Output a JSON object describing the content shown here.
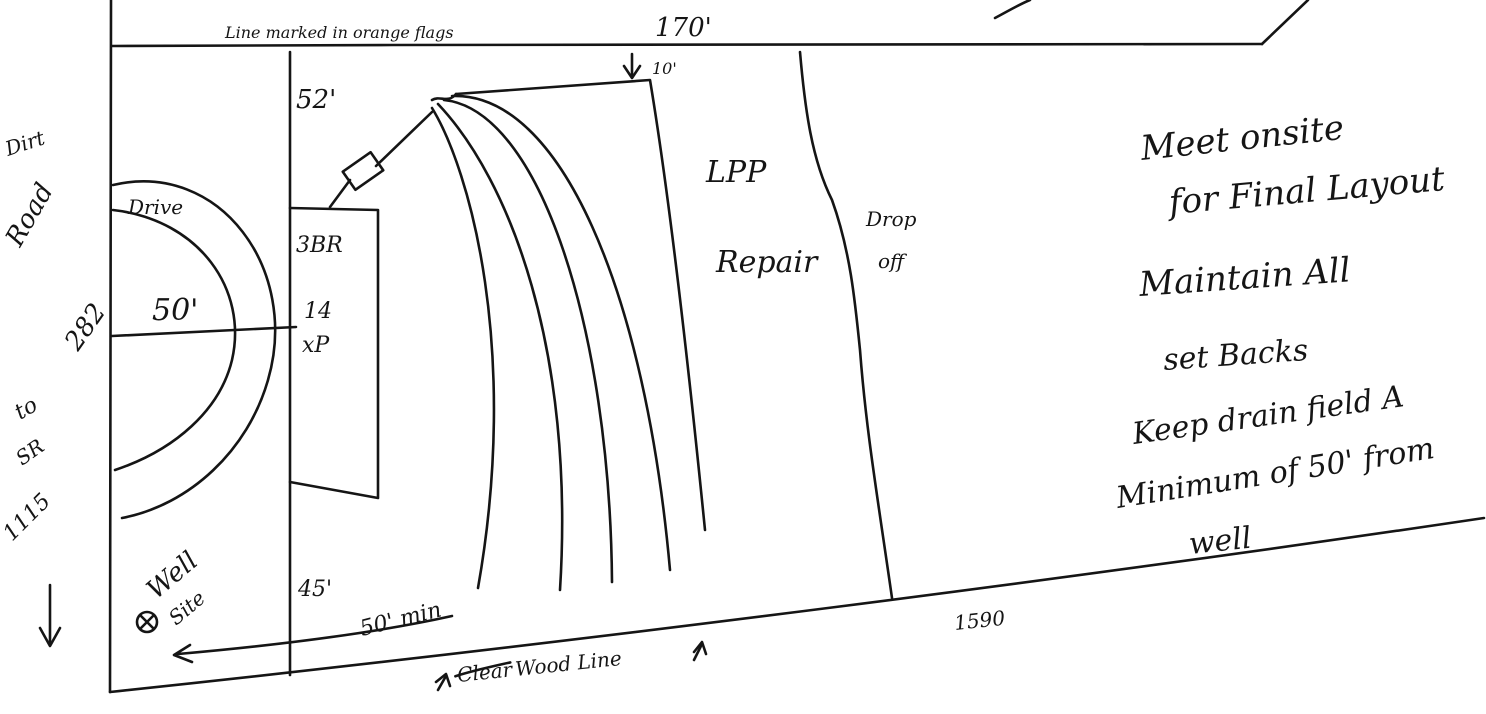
{
  "labels": {
    "top_note": "Line marked in orange flags",
    "top_dim": "170'",
    "dim_52": "52'",
    "dim_10": "10'",
    "dirt": "Dirt",
    "road": "Road",
    "road_num": "282",
    "drive": "Drive",
    "dim_50": "50'",
    "to": "to",
    "sr": "SR",
    "sr_num": "1115",
    "well_1": "Well",
    "well_2": "Site",
    "dim_45": "45'",
    "min_50": "50' min",
    "house_1": "3BR",
    "house_2": "14",
    "house_3": "xP",
    "lpp_1": "LPP",
    "lpp_2": "Repair",
    "drop_1": "Drop",
    "drop_2": "off",
    "bottom_dim": "1590",
    "wood_line": "Wood Line",
    "clear_struck": "Clear",
    "note_1": "Meet onsite",
    "note_2": "for Final Layout",
    "note_3": "Maintain All",
    "note_4": "set Backs",
    "note_5": "Keep drain field A",
    "note_6": "Minimum of 50' from",
    "note_7": "well"
  }
}
